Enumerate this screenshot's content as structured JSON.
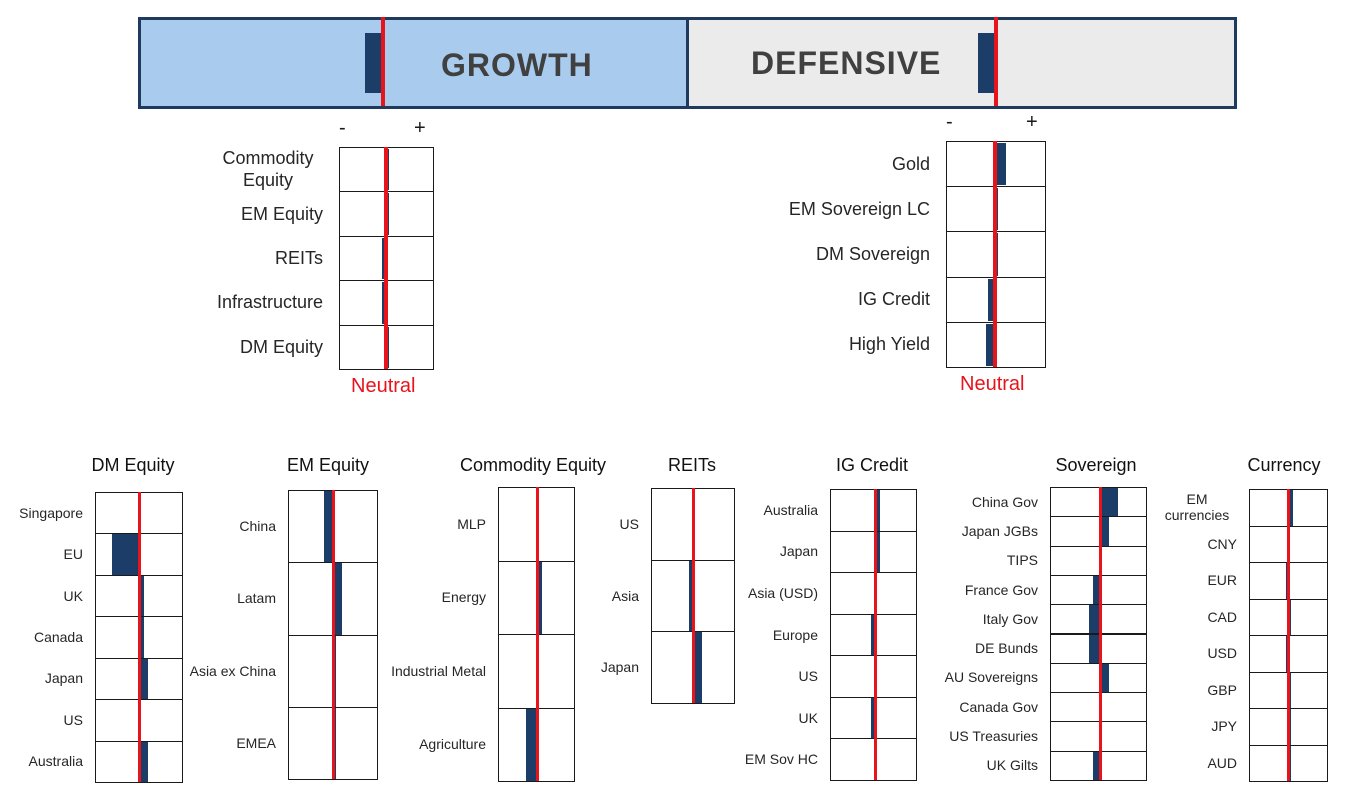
{
  "banner": {
    "growth_label": "GROWTH",
    "defensive_label": "DEFENSIVE",
    "growth_position": -0.07,
    "defensive_position": -0.07
  },
  "colors": {
    "neutral_line": "#e8141c",
    "bar": "#1c3d67",
    "growth_bg": "#a9ccee",
    "defensive_bg": "#ebebeb"
  },
  "sign_minus": "-",
  "sign_plus": "+",
  "neutral_label": "Neutral",
  "growth_sub": {
    "title": "",
    "scale": "position relative to neutral (-1 = max underweight, +1 = max overweight)",
    "items": [
      {
        "label": "Commodity Equity",
        "value": 0.1
      },
      {
        "label": "EM Equity",
        "value": 0.1
      },
      {
        "label": "REITs",
        "value": -0.15
      },
      {
        "label": "Infrastructure",
        "value": -0.15
      },
      {
        "label": "DM Equity",
        "value": 0.1
      }
    ]
  },
  "defensive_sub": {
    "title": "",
    "items": [
      {
        "label": "Gold",
        "value": 0.35
      },
      {
        "label": "EM Sovereign LC",
        "value": 0.1
      },
      {
        "label": "DM Sovereign",
        "value": 0.1
      },
      {
        "label": "IG Credit",
        "value": -0.25
      },
      {
        "label": "High Yield",
        "value": -0.3
      }
    ]
  },
  "chart_data": [
    {
      "type": "bar",
      "title": "DM Equity",
      "categories": [
        "Singapore",
        "EU",
        "UK",
        "Canada",
        "Japan",
        "US",
        "Australia"
      ],
      "values": [
        0,
        -0.6,
        0.1,
        0.1,
        0.2,
        0,
        0.2
      ]
    },
    {
      "type": "bar",
      "title": "EM Equity",
      "categories": [
        "China",
        "Latam",
        "Asia ex China",
        "EMEA"
      ],
      "values": [
        -0.2,
        0.2,
        0.05,
        0.05
      ]
    },
    {
      "type": "bar",
      "title": "Commodity Equity",
      "categories": [
        "MLP",
        "Energy",
        "Industrial Metal",
        "Agriculture"
      ],
      "values": [
        0,
        0.1,
        0,
        -0.25
      ]
    },
    {
      "type": "bar",
      "title": "REITs",
      "categories": [
        "US",
        "Asia",
        "Japan"
      ],
      "values": [
        0,
        -0.1,
        0.2
      ]
    },
    {
      "type": "bar",
      "title": "IG Credit",
      "categories": [
        "Australia",
        "Japan",
        "Asia (USD)",
        "Europe",
        "US",
        "UK",
        "EM Sov HC"
      ],
      "values": [
        0.1,
        0.1,
        0,
        -0.1,
        0,
        -0.1,
        0
      ]
    },
    {
      "type": "bar",
      "title": "Sovereign",
      "categories": [
        "China Gov",
        "Japan JGBs",
        "TIPS",
        "France Gov",
        "Italy Gov",
        "DE Bunds",
        "AU Sovereigns",
        "Canada Gov",
        "US Treasuries",
        "UK Gilts"
      ],
      "values": [
        0.4,
        0.2,
        0,
        -0.15,
        -0.25,
        -0.25,
        0.2,
        0,
        0,
        -0.15
      ]
    },
    {
      "type": "bar",
      "title": "Currency",
      "categories": [
        "EM currencies",
        "CNY",
        "EUR",
        "CAD",
        "USD",
        "GBP",
        "JPY",
        "AUD"
      ],
      "values": [
        0.1,
        0,
        -0.05,
        0.05,
        -0.05,
        0.05,
        0.05,
        0.05
      ]
    }
  ]
}
